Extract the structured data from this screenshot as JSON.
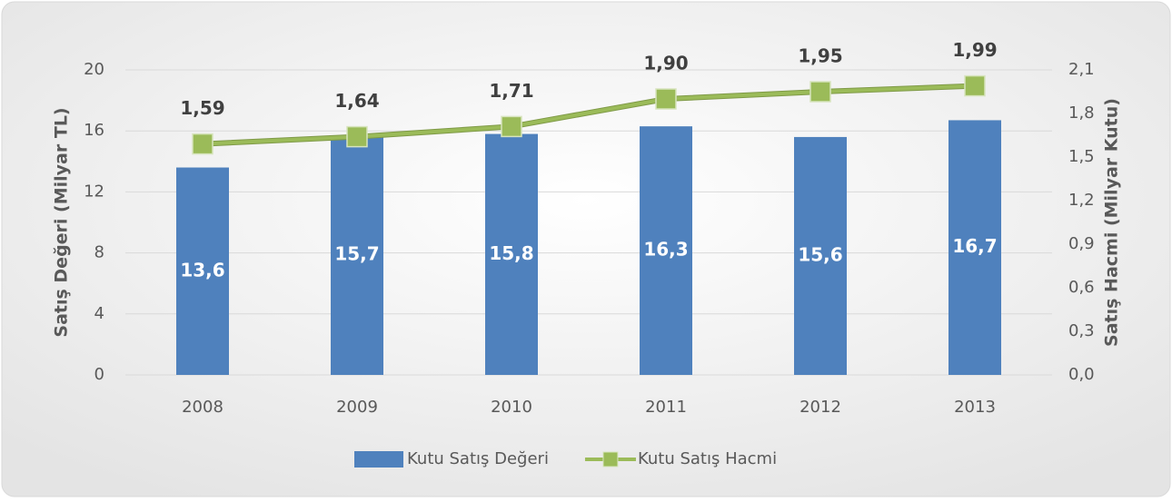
{
  "chart_data": {
    "type": "bar",
    "categories": [
      "2008",
      "2009",
      "2010",
      "2011",
      "2012",
      "2013"
    ],
    "y_label": "Satış Değeri (Milyar TL)",
    "y2_label": "Satış Hacmi (Milyar Kutu)",
    "ylim": [
      0,
      20
    ],
    "yticks": [
      0,
      4,
      8,
      12,
      16,
      20
    ],
    "y2lim": [
      0,
      2.1
    ],
    "y2ticks": [
      {
        "value": 0,
        "label": "0,0"
      },
      {
        "value": 0.3,
        "label": "0,3"
      },
      {
        "value": 0.6,
        "label": "0,6"
      },
      {
        "value": 0.9,
        "label": "0,9"
      },
      {
        "value": 1.2,
        "label": "1,2"
      },
      {
        "value": 1.5,
        "label": "1,5"
      },
      {
        "value": 1.8,
        "label": "1,8"
      },
      {
        "value": 2.1,
        "label": "2,1"
      }
    ],
    "grid": true,
    "legend": "bottom",
    "series": [
      {
        "name": "Kutu Satış Değeri",
        "type": "bar",
        "color": "#4f81bd",
        "values": [
          13.6,
          15.7,
          15.8,
          16.3,
          15.6,
          16.7
        ],
        "value_labels": [
          "13,6",
          "15,7",
          "15,8",
          "16,3",
          "15,6",
          "16,7"
        ]
      },
      {
        "name": "Kutu Satış Hacmi",
        "type": "line",
        "axis": "y2",
        "color": "#9bbb59",
        "values": [
          1.59,
          1.64,
          1.71,
          1.9,
          1.95,
          1.99
        ],
        "value_labels": [
          "1,59",
          "1,64",
          "1,71",
          "1,90",
          "1,95",
          "1,99"
        ]
      }
    ]
  }
}
